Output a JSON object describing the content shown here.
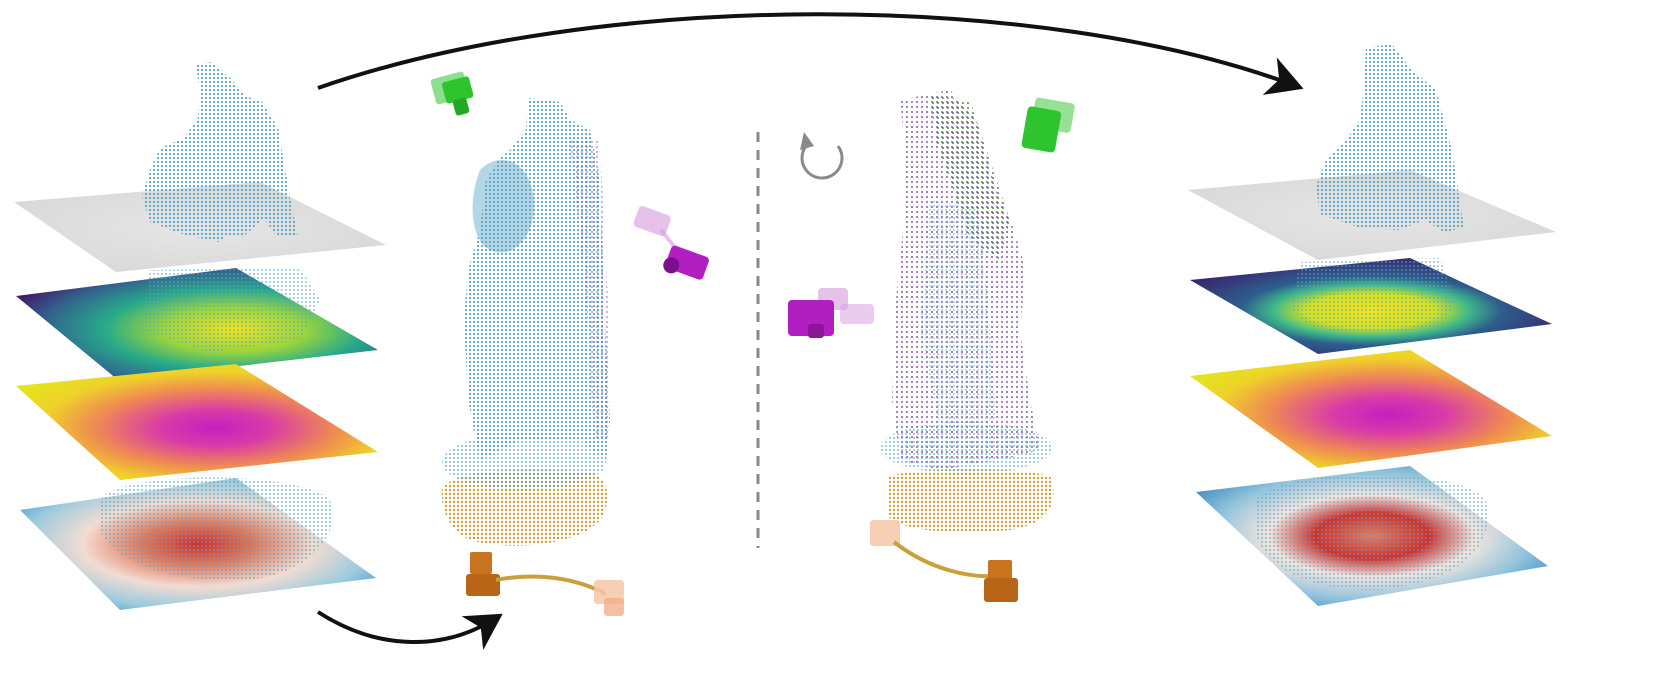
{
  "figure": {
    "panels": [
      {
        "id": "left-stack",
        "layers": [
          "depth-slice-gray",
          "heatmap-viridis",
          "heatmap-plasma",
          "heatmap-coolwarm"
        ]
      },
      {
        "id": "center-left-cloud",
        "parts": [
          "bust-cloud-blue",
          "base-ring-gold"
        ],
        "cameras": [
          "camera-green",
          "camera-magenta",
          "camera-orange"
        ]
      },
      {
        "id": "center-right-cloud",
        "parts": [
          "bust-cloud-purple-green",
          "base-ring-gold"
        ],
        "cameras": [
          "camera-green",
          "camera-magenta",
          "camera-orange"
        ]
      },
      {
        "id": "right-stack",
        "layers": [
          "depth-slice-gray",
          "heatmap-viridis",
          "heatmap-plasma",
          "heatmap-coolwarm"
        ]
      }
    ],
    "icons": [
      "rotate-icon",
      "top-arc-arrow",
      "bottom-arc-arrow",
      "dashed-divider"
    ],
    "colors": {
      "cloud_blue": "#5ba3c6",
      "cloud_purple": "#8a5aa8",
      "cloud_green": "#4f8a4a",
      "gold": "#c9a13a",
      "cam_green": "#2ec42e",
      "cam_magenta": "#b21fc0",
      "cam_orange": "#c8741f",
      "arrow": "#111111",
      "divider": "#8a8a8a"
    }
  }
}
